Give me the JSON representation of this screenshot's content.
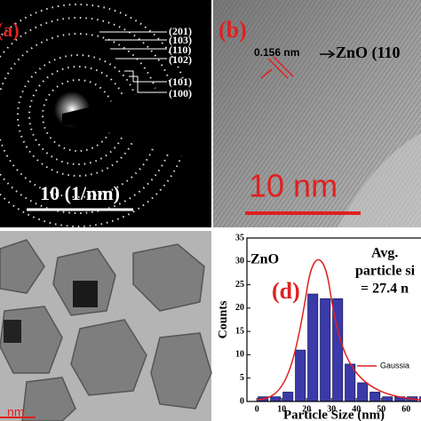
{
  "panels": {
    "a": {
      "label": "(a)",
      "planes": [
        "(201)",
        "(103)",
        "(110)",
        "(102)",
        "(101)",
        "(100)"
      ],
      "scale_bar": "10 (1/nm)"
    },
    "b": {
      "label": "(b)",
      "d_spacing": "0.156 nm",
      "phase": "ZnO (110",
      "scale_bar": "10 nm"
    },
    "c": {
      "scale_bar": "nm"
    }
  },
  "chart_data": {
    "type": "histogram",
    "label": "(d)",
    "annotations": [
      "ZnO",
      "Avg.",
      "particle si",
      "= 27.4 n"
    ],
    "xlabel": "Particle Size (nm)",
    "ylabel": "Counts",
    "fit_name": "Gaussia",
    "bins": [
      0,
      5,
      10,
      15,
      20,
      25,
      30,
      35,
      40,
      45,
      50,
      55,
      60,
      65,
      70
    ],
    "values": [
      1,
      1,
      2,
      11,
      23,
      22,
      22,
      8,
      4,
      2,
      1,
      1,
      1,
      1
    ],
    "color": "#3a3aa8",
    "xlim": [
      -4,
      66
    ],
    "ylim": [
      0,
      35
    ],
    "xticks": [
      0,
      10,
      20,
      30,
      40,
      50,
      60
    ],
    "yticks": [
      0,
      5,
      10,
      15,
      20,
      25,
      30,
      35
    ]
  }
}
